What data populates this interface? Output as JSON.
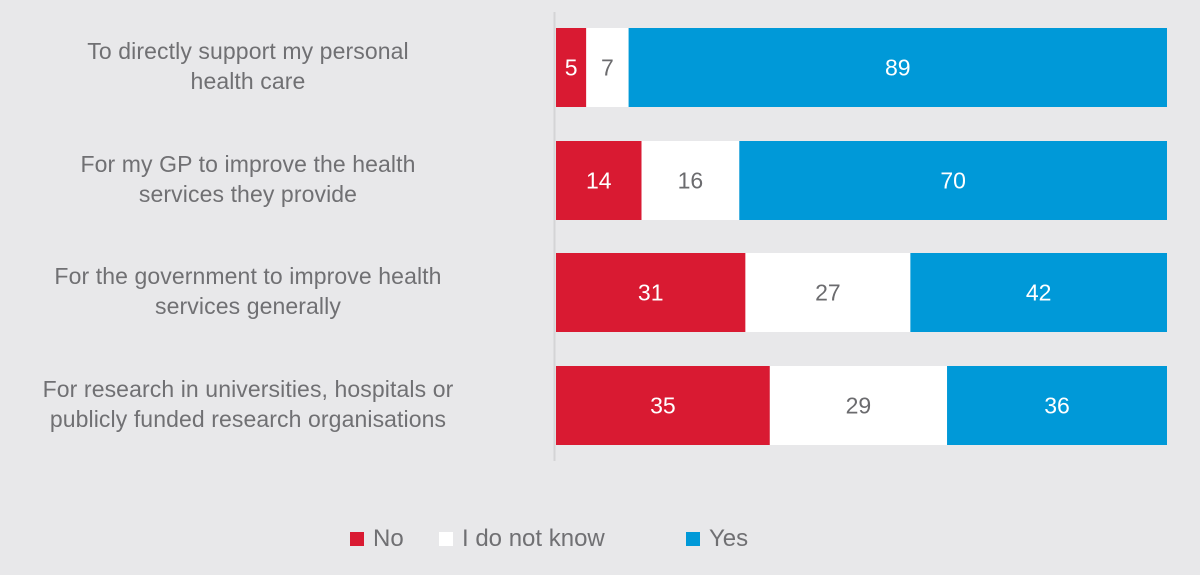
{
  "chart_data": {
    "type": "bar",
    "orientation": "horizontal",
    "stacked": true,
    "title": "",
    "xlabel": "",
    "ylabel": "",
    "categories": [
      "To directly support my personal health care",
      "For my GP to improve the health services they provide",
      "For the government to improve health services generally",
      "For research in universities, hospitals or publicly funded research organisations"
    ],
    "category_lines": [
      [
        "To directly support my personal",
        "health care"
      ],
      [
        "For my GP to improve the health",
        "services they provide"
      ],
      [
        "For the government to improve health",
        "services generally"
      ],
      [
        "For research in universities, hospitals or",
        "publicly funded research organisations"
      ]
    ],
    "series": [
      {
        "name": "No",
        "color": "#d91a32",
        "label_color": "#ffffff",
        "values": [
          5,
          14,
          31,
          35
        ]
      },
      {
        "name": "I do not know",
        "color": "#ffffff",
        "label_color": "#6b6b6e",
        "values": [
          7,
          16,
          27,
          29
        ]
      },
      {
        "name": "Yes",
        "color": "#0099d8",
        "label_color": "#ffffff",
        "values": [
          89,
          70,
          42,
          36
        ]
      }
    ],
    "legend": {
      "position": "bottom",
      "entries": [
        "No",
        "I do not know",
        "Yes"
      ]
    },
    "grid": false,
    "data_labels": true
  }
}
